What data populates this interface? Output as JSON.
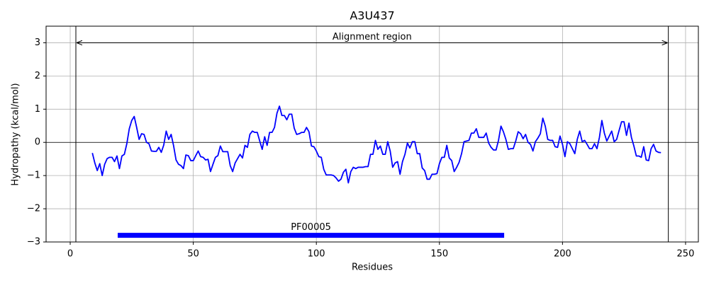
{
  "chart_data": {
    "type": "line",
    "title": "A3U437",
    "xlabel": "Residues",
    "ylabel": "Hydropathy (kcal/mol)",
    "color": "#0000ff",
    "x": [
      9,
      10,
      11,
      12,
      13,
      14,
      15,
      16,
      17,
      18,
      19,
      20,
      21,
      22,
      23,
      24,
      25,
      26,
      27,
      28,
      29,
      30,
      31,
      32,
      33,
      34,
      35,
      36,
      37,
      38,
      39,
      40,
      41,
      42,
      43,
      44,
      45,
      46,
      47,
      48,
      49,
      50,
      51,
      52,
      53,
      54,
      55,
      56,
      57,
      58,
      59,
      60,
      61,
      62,
      63,
      64,
      65,
      66,
      67,
      68,
      69,
      70,
      71,
      72,
      73,
      74,
      75,
      76,
      77,
      78,
      79,
      80,
      81,
      82,
      83,
      84,
      85,
      86,
      87,
      88,
      89,
      90,
      91,
      92,
      93,
      94,
      95,
      96,
      97,
      98,
      99,
      100,
      101,
      102,
      103,
      104,
      105,
      106,
      107,
      108,
      109,
      110,
      111,
      112,
      113,
      114,
      115,
      116,
      117,
      118,
      119,
      120,
      121,
      122,
      123,
      124,
      125,
      126,
      127,
      128,
      129,
      130,
      131,
      132,
      133,
      134,
      135,
      136,
      137,
      138,
      139,
      140,
      141,
      142,
      143,
      144,
      145,
      146,
      147,
      148,
      149,
      150,
      151,
      152,
      153,
      154,
      155,
      156,
      157,
      158,
      159,
      160,
      161,
      162,
      163,
      164,
      165,
      166,
      167,
      168,
      169,
      170,
      171,
      172,
      173,
      174,
      175,
      176,
      177,
      178,
      179,
      180,
      181,
      182,
      183,
      184,
      185,
      186,
      187,
      188,
      189,
      190,
      191,
      192,
      193,
      194,
      195,
      196,
      197,
      198,
      199,
      200,
      201,
      202,
      203,
      204,
      205,
      206,
      207,
      208,
      209,
      210,
      211,
      212,
      213,
      214,
      215,
      216,
      217,
      218,
      219,
      220,
      221,
      222,
      223,
      224,
      225,
      226,
      227,
      228,
      229,
      230,
      231,
      232,
      233,
      234,
      235,
      236,
      237,
      238,
      239,
      240
    ],
    "values": [
      -0.32,
      -0.62,
      -0.85,
      -0.64,
      -1.0,
      -0.66,
      -0.49,
      -0.45,
      -0.45,
      -0.58,
      -0.41,
      -0.79,
      -0.41,
      -0.36,
      -0.04,
      0.41,
      0.66,
      0.78,
      0.45,
      0.09,
      0.26,
      0.24,
      0.0,
      -0.04,
      -0.26,
      -0.27,
      -0.27,
      -0.15,
      -0.3,
      -0.08,
      0.34,
      0.09,
      0.24,
      -0.1,
      -0.53,
      -0.66,
      -0.7,
      -0.79,
      -0.38,
      -0.4,
      -0.55,
      -0.55,
      -0.4,
      -0.26,
      -0.43,
      -0.45,
      -0.53,
      -0.51,
      -0.88,
      -0.66,
      -0.45,
      -0.4,
      -0.11,
      -0.28,
      -0.28,
      -0.28,
      -0.7,
      -0.88,
      -0.62,
      -0.49,
      -0.36,
      -0.47,
      -0.09,
      -0.15,
      0.24,
      0.34,
      0.3,
      0.3,
      0.04,
      -0.21,
      0.17,
      -0.09,
      0.3,
      0.3,
      0.45,
      0.88,
      1.09,
      0.81,
      0.81,
      0.68,
      0.85,
      0.85,
      0.43,
      0.24,
      0.26,
      0.3,
      0.3,
      0.45,
      0.32,
      -0.11,
      -0.13,
      -0.26,
      -0.43,
      -0.45,
      -0.81,
      -0.98,
      -0.98,
      -0.98,
      -1.0,
      -1.07,
      -1.17,
      -1.11,
      -0.9,
      -0.81,
      -1.22,
      -0.88,
      -0.75,
      -0.79,
      -0.75,
      -0.75,
      -0.75,
      -0.73,
      -0.73,
      -0.36,
      -0.36,
      0.06,
      -0.21,
      -0.11,
      -0.36,
      -0.36,
      0.02,
      -0.26,
      -0.75,
      -0.62,
      -0.58,
      -0.96,
      -0.58,
      -0.36,
      -0.02,
      -0.17,
      0.02,
      0.02,
      -0.34,
      -0.34,
      -0.77,
      -0.85,
      -1.11,
      -1.11,
      -0.96,
      -0.96,
      -0.94,
      -0.64,
      -0.45,
      -0.45,
      -0.09,
      -0.47,
      -0.55,
      -0.88,
      -0.75,
      -0.6,
      -0.34,
      0.02,
      0.04,
      0.06,
      0.28,
      0.28,
      0.41,
      0.15,
      0.15,
      0.15,
      0.28,
      -0.02,
      -0.15,
      -0.23,
      -0.23,
      0.06,
      0.49,
      0.32,
      0.09,
      -0.21,
      -0.19,
      -0.19,
      0.04,
      0.32,
      0.26,
      0.11,
      0.24,
      0.0,
      -0.06,
      -0.26,
      0.02,
      0.13,
      0.26,
      0.73,
      0.49,
      0.09,
      0.06,
      0.06,
      -0.13,
      -0.15,
      0.19,
      -0.06,
      -0.43,
      0.02,
      -0.04,
      -0.19,
      -0.34,
      0.09,
      0.34,
      0.02,
      0.06,
      -0.06,
      -0.19,
      -0.19,
      -0.04,
      -0.19,
      0.15,
      0.66,
      0.28,
      0.04,
      0.19,
      0.34,
      0.02,
      0.09,
      0.36,
      0.62,
      0.62,
      0.21,
      0.58,
      0.15,
      -0.11,
      -0.41,
      -0.41,
      -0.45,
      -0.13,
      -0.53,
      -0.55,
      -0.19,
      -0.06,
      -0.26,
      -0.3,
      -0.31
    ],
    "xlim": [
      -9.8,
      255.2
    ],
    "ylim": [
      -3,
      3.5
    ],
    "xticks": [
      0,
      50,
      100,
      150,
      200,
      250
    ],
    "yticks": [
      {
        "value": -3,
        "label": "−3"
      },
      {
        "value": -2,
        "label": "−2"
      },
      {
        "value": -1,
        "label": "−1"
      },
      0,
      1,
      2,
      3
    ],
    "grid": true,
    "hline": 0,
    "alignment_region": {
      "label": "Alignment region",
      "start": 2.3,
      "end": 243,
      "y": 3
    },
    "domain": {
      "label": "PF00005",
      "start": 19.3,
      "end": 176.3,
      "y": -2.8,
      "color": "#0000ff"
    }
  }
}
